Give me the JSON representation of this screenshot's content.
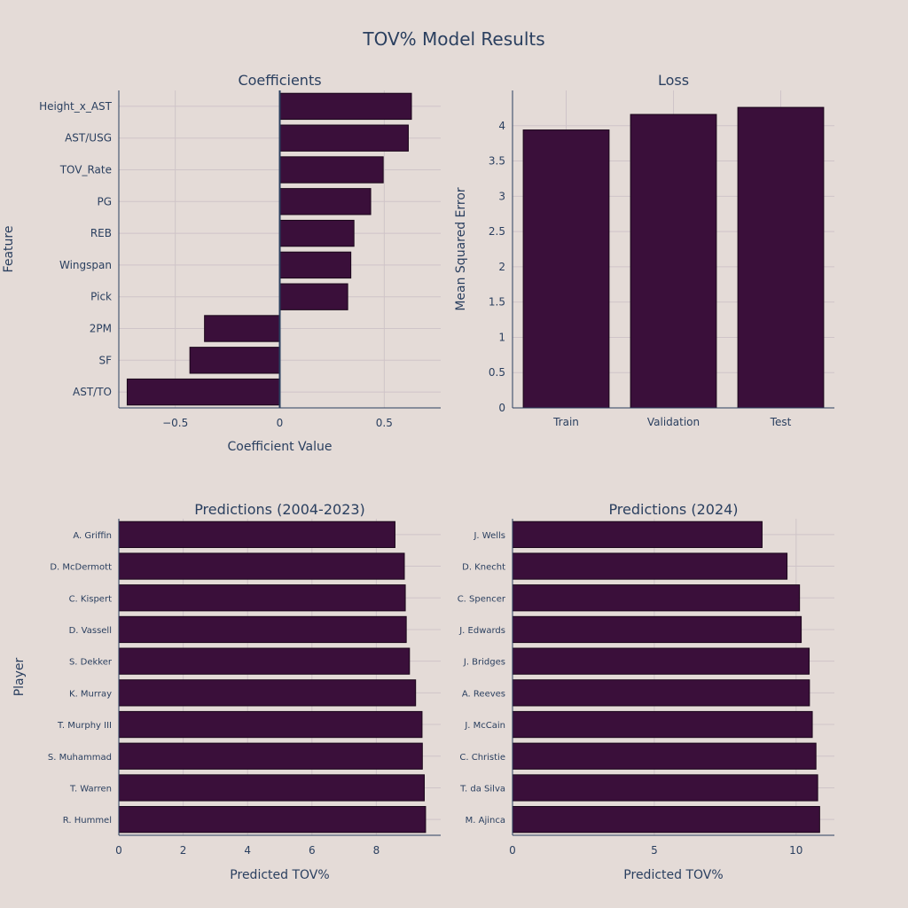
{
  "figure": {
    "title": "TOV% Model Results",
    "colors": {
      "background": "#e4dbd7",
      "bar": "#3a0f3a",
      "bar_edge": "#1a061a",
      "text": "#2a3f5f",
      "grid": "#cfc4c8"
    }
  },
  "chart_data": [
    {
      "id": "coef",
      "type": "bar",
      "orientation": "horizontal",
      "title": "Coefficients",
      "xlabel": "Coefficient Value",
      "ylabel": "Feature",
      "xlim": [
        -0.77,
        0.77
      ],
      "xticks": [
        -0.5,
        0,
        0.5
      ],
      "xtick_labels": [
        "−0.5",
        "0",
        "0.5"
      ],
      "categories": [
        "Height_x_AST",
        "AST/USG",
        "TOV_Rate",
        "PG",
        "REB",
        "Wingspan",
        "Pick",
        "2PM",
        "SF",
        "AST/TO"
      ],
      "values": [
        0.63,
        0.615,
        0.495,
        0.435,
        0.355,
        0.34,
        0.325,
        -0.36,
        -0.43,
        -0.73
      ]
    },
    {
      "id": "loss",
      "type": "bar",
      "orientation": "vertical",
      "title": "Loss",
      "xlabel": "",
      "ylabel": "Mean Squared Error",
      "ylim": [
        0,
        4.5
      ],
      "yticks": [
        0,
        0.5,
        1,
        1.5,
        2,
        2.5,
        3,
        3.5,
        4
      ],
      "ytick_labels": [
        "0",
        "0.5",
        "1",
        "1.5",
        "2",
        "2.5",
        "3",
        "3.5",
        "4"
      ],
      "categories": [
        "Train",
        "Validation",
        "Test"
      ],
      "values": [
        3.94,
        4.16,
        4.26
      ]
    },
    {
      "id": "hist",
      "type": "bar",
      "orientation": "horizontal",
      "title": "Predictions (2004-2023)",
      "xlabel": "Predicted TOV%",
      "ylabel": "Player",
      "xlim": [
        0,
        10
      ],
      "xticks": [
        0,
        2,
        4,
        6,
        8
      ],
      "xtick_labels": [
        "0",
        "2",
        "4",
        "6",
        "8"
      ],
      "categories": [
        "A. Griffin",
        "D. McDermott",
        "C. Kispert",
        "D. Vassell",
        "S. Dekker",
        "K. Murray",
        "T. Murphy III",
        "S. Muhammad",
        "T. Warren",
        "R. Hummel"
      ],
      "values": [
        8.58,
        8.87,
        8.9,
        8.93,
        9.03,
        9.22,
        9.42,
        9.43,
        9.49,
        9.53
      ]
    },
    {
      "id": "pred2024",
      "type": "bar",
      "orientation": "horizontal",
      "title": "Predictions (2024)",
      "xlabel": "Predicted TOV%",
      "ylabel": "",
      "xlim": [
        0,
        11.35
      ],
      "xticks": [
        0,
        5,
        10
      ],
      "xtick_labels": [
        "0",
        "5",
        "10"
      ],
      "categories": [
        "J. Wells",
        "D. Knecht",
        "C. Spencer",
        "J. Edwards",
        "J. Bridges",
        "A. Reeves",
        "J. McCain",
        "C. Christie",
        "T. da Silva",
        "M. Ajinca"
      ],
      "values": [
        8.8,
        9.68,
        10.12,
        10.18,
        10.46,
        10.47,
        10.57,
        10.7,
        10.76,
        10.83
      ]
    }
  ]
}
